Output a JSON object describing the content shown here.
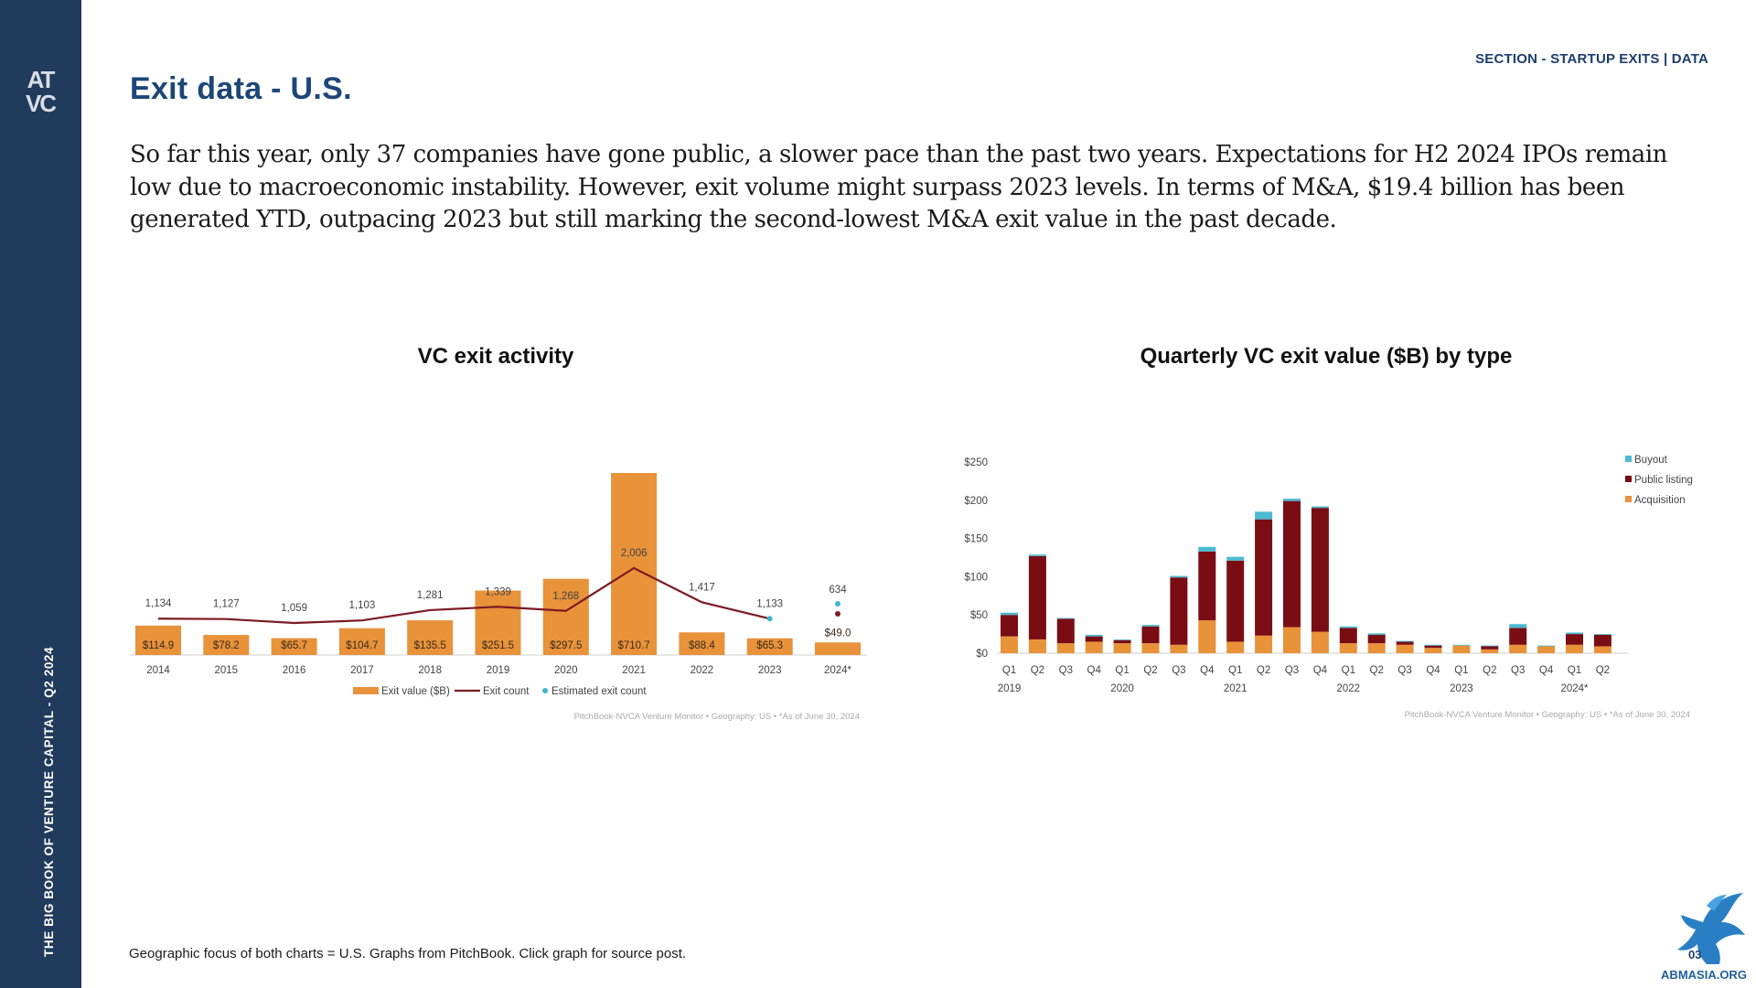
{
  "sidebar": {
    "logo_line1": "AT",
    "logo_line2": "VC",
    "vertical_text": "THE BIG BOOK OF VENTURE CAPITAL - Q2 2024"
  },
  "header": {
    "section_label": "SECTION - STARTUP EXITS | DATA",
    "title": "Exit data - U.S.",
    "intro": "So far this year, only 37 companies have gone public, a slower pace than the past two years. Expectations for H2 2024 IPOs remain low due to macroeconomic instability. However, exit volume might surpass 2023 levels. In terms of M&A, $19.4 billion has been generated YTD, outpacing 2023 but still marking the second-lowest M&A exit value in the past decade."
  },
  "colors": {
    "sidebar": "#213b5c",
    "title": "#1d4677",
    "exit_value": "#e8923a",
    "exit_count": "#7b1a22",
    "estimated": "#3fb6cc",
    "public_listing": "#7a0d14",
    "buyout": "#4cbad1"
  },
  "footer": {
    "note": "Geographic focus of both charts = U.S. Graphs from PitchBook. Click graph for source post.",
    "page_number": "03"
  },
  "watermark": {
    "text": "ABMASIA.ORG"
  },
  "chart_data": [
    {
      "type": "bar",
      "title": "VC exit activity",
      "categories": [
        "2014",
        "2015",
        "2016",
        "2017",
        "2018",
        "2019",
        "2020",
        "2021",
        "2022",
        "2023",
        "2024*"
      ],
      "series": [
        {
          "name": "Exit value ($B)",
          "type": "bar",
          "values": [
            114.9,
            78.2,
            65.7,
            104.7,
            135.5,
            251.5,
            297.5,
            710.7,
            88.4,
            65.3,
            49.0
          ],
          "labels": [
            "$114.9",
            "$78.2",
            "$65.7",
            "$104.7",
            "$135.5",
            "$251.5",
            "$297.5",
            "$710.7",
            "$88.4",
            "$65.3",
            "$49.0"
          ]
        },
        {
          "name": "Exit count",
          "type": "line",
          "values": [
            1134,
            1127,
            1059,
            1103,
            1281,
            1339,
            1268,
            2006,
            1417,
            1133,
            329
          ],
          "labels": [
            "1,134",
            "1,127",
            "1,059",
            "1,103",
            "1,281",
            "1,339",
            "1,268",
            "2,006",
            "1,417",
            "1,133",
            ""
          ]
        },
        {
          "name": "Estimated exit count",
          "type": "point",
          "values": [
            null,
            null,
            null,
            null,
            null,
            null,
            null,
            null,
            null,
            null,
            634
          ],
          "labels": [
            "",
            "",
            "",
            "",
            "",
            "",
            "",
            "",
            "",
            "",
            "634"
          ]
        }
      ],
      "source": "PitchBook-NVCA Venture Monitor  •  Geography: US  •  *As of June 30, 2024"
    },
    {
      "type": "bar",
      "stacked": true,
      "title": "Quarterly VC exit value ($B) by type",
      "categories": [
        "Q1",
        "Q2",
        "Q3",
        "Q4",
        "Q1",
        "Q2",
        "Q3",
        "Q4",
        "Q1",
        "Q2",
        "Q3",
        "Q4",
        "Q1",
        "Q2",
        "Q3",
        "Q4",
        "Q1",
        "Q2",
        "Q3",
        "Q4",
        "Q1",
        "Q2"
      ],
      "year_groups": [
        {
          "label": "2019",
          "start": 0
        },
        {
          "label": "2020",
          "start": 4
        },
        {
          "label": "2021",
          "start": 8
        },
        {
          "label": "2022",
          "start": 12
        },
        {
          "label": "2023",
          "start": 16
        },
        {
          "label": "2024*",
          "start": 20
        }
      ],
      "series": [
        {
          "name": "Acquisition",
          "values": [
            22,
            18,
            13,
            15,
            13,
            13,
            11,
            43,
            15,
            23,
            34,
            28,
            13,
            13,
            11,
            7,
            10,
            5,
            11,
            9,
            11,
            9
          ]
        },
        {
          "name": "Public listing",
          "values": [
            28,
            109,
            32,
            7,
            4,
            22,
            88,
            90,
            106,
            152,
            165,
            162,
            20,
            11,
            4,
            3,
            0,
            4,
            22,
            0,
            14,
            15
          ]
        },
        {
          "name": "Buyout",
          "values": [
            3,
            2,
            1,
            2,
            1,
            2,
            2,
            6,
            5,
            10,
            3,
            2,
            2,
            2,
            1,
            1,
            1,
            1,
            5,
            1,
            2,
            1
          ]
        }
      ],
      "ylim": [
        0,
        250
      ],
      "yticks": [
        0,
        50,
        100,
        150,
        200,
        250
      ],
      "ytick_labels": [
        "$0",
        "$50",
        "$100",
        "$150",
        "$200",
        "$250"
      ],
      "legend": "top-right",
      "source": "PitchBook-NVCA Venture Monitor  •  Geography: US  •  *As of June 30, 2024"
    }
  ]
}
